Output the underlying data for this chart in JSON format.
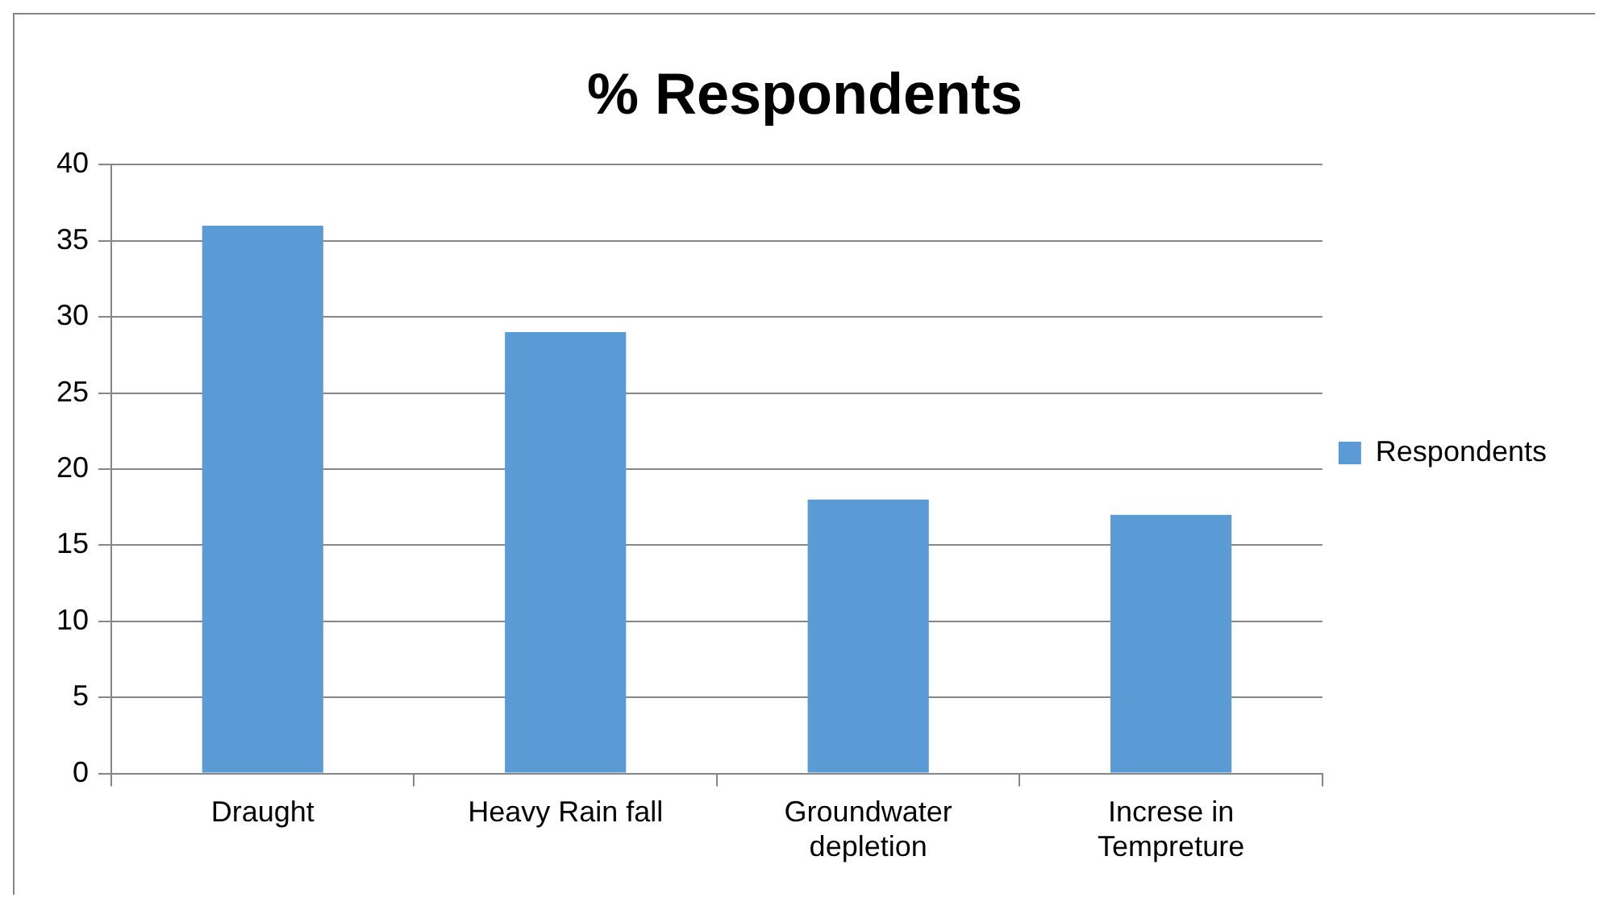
{
  "chart_data": {
    "type": "bar",
    "title": "% Respondents",
    "categories": [
      "Draught",
      "Heavy Rain fall",
      "Groundwater depletion",
      "Increse in Tempreture"
    ],
    "series": [
      {
        "name": "Respondents",
        "color": "#5b9bd5",
        "values": [
          36,
          29,
          18,
          17
        ]
      }
    ],
    "ylim": [
      0,
      40
    ],
    "yticks": [
      0,
      5,
      10,
      15,
      20,
      25,
      30,
      35,
      40
    ],
    "grid": "y",
    "legend": "right"
  }
}
